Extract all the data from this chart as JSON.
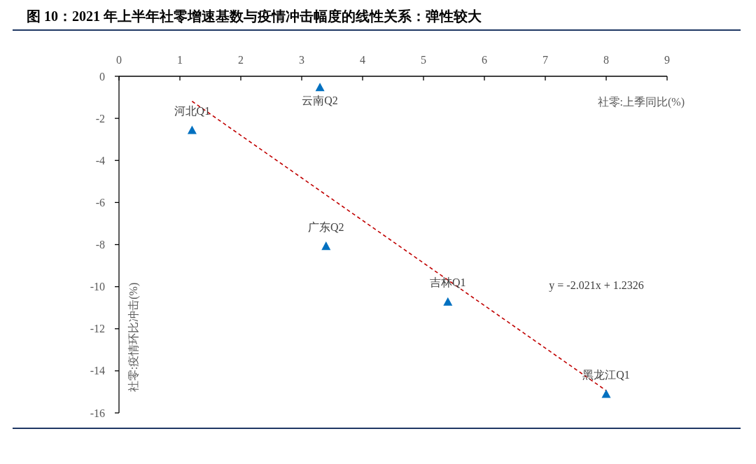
{
  "chart_data": {
    "type": "scatter",
    "title": "图 10：2021 年上半年社零增速基数与疫情冲击幅度的线性关系：弹性较大",
    "xlabel": "社零:上季同比(%)",
    "ylabel": "社零:疫情环比冲击(%)",
    "xlim": [
      0,
      9
    ],
    "xticks": [
      0,
      1,
      2,
      3,
      4,
      5,
      6,
      7,
      8,
      9
    ],
    "ylim": [
      -16,
      0
    ],
    "yticks": [
      0,
      -2,
      -4,
      -6,
      -8,
      -10,
      -12,
      -14,
      -16
    ],
    "marker": "triangle",
    "series": [
      {
        "type": "scatter",
        "color": "#0070c0",
        "x": [
          1.2,
          3.3,
          3.4,
          5.4,
          8.0
        ],
        "values": [
          -2.56,
          -0.52,
          -8.07,
          -10.72,
          -15.1
        ]
      },
      {
        "type": "line",
        "color": "#c00000",
        "line_style": "dashed",
        "marker": "none",
        "x": [
          1.2,
          8
        ],
        "values": [
          -1.19,
          -14.94
        ]
      }
    ],
    "annotations": [
      {
        "text": "河北Q1",
        "x": 1.2,
        "y": -2.56
      },
      {
        "text": "云南Q2",
        "x": 3.3,
        "y": -0.52
      },
      {
        "text": "广东Q2",
        "x": 3.4,
        "y": -8.07
      },
      {
        "text": "吉林Q1",
        "x": 5.4,
        "y": -10.72
      },
      {
        "text": "黑龙江Q1",
        "x": 8.0,
        "y": -15.1
      },
      "y = -2.021x + 1.2326"
    ]
  }
}
